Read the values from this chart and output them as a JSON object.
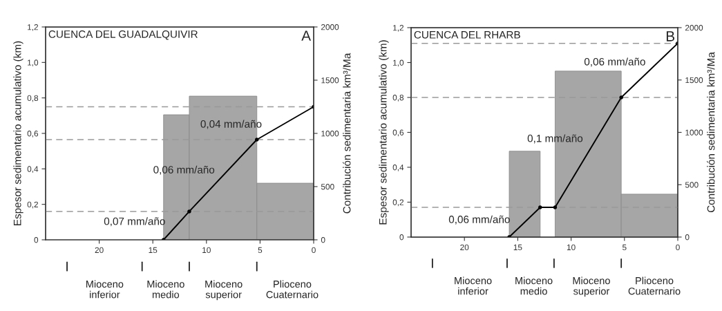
{
  "chart_data": [
    {
      "type": "line",
      "title": "CUENCA DEL GUADALQUIVIR",
      "xlabel": null,
      "ylabel": "Espesor sedimentario acumulativo (km)",
      "y2label": "Contribución sedimentaria km³/Ma",
      "xlim": [
        25,
        0
      ],
      "xticks": [
        20,
        15,
        10,
        5,
        0
      ],
      "ylim": [
        0,
        1.2
      ],
      "yticks": [
        0,
        {
          "value": 0.2,
          "label": "0,2"
        },
        {
          "value": 0.4,
          "label": "0,4"
        },
        {
          "value": 0.6,
          "label": "0,6"
        },
        {
          "value": 0.8,
          "label": "0,8"
        },
        {
          "value": 1.0,
          "label": "1,0"
        },
        {
          "value": 1.2,
          "label": "1,2"
        }
      ],
      "y2lim": [
        0,
        2000
      ],
      "y2ticks": [
        0,
        500,
        1000,
        1500,
        2000
      ],
      "series": [
        {
          "type": "histogram",
          "axis": "y2",
          "color": "#a6a6a6",
          "bins": [
            14,
            11.6,
            5.3,
            0
          ],
          "values": [
            1175,
            1350,
            532
          ]
        },
        {
          "color": "#000000",
          "x": [
            14,
            11.6,
            5.3,
            0
          ],
          "values": [
            0,
            0.16,
            0.565,
            0.75
          ]
        }
      ],
      "ref_lines": [
        {
          "axis": "y",
          "value": 0.16,
          "color": "#999999",
          "line_style": "dashed"
        },
        {
          "axis": "y",
          "value": 0.565,
          "color": "#999999",
          "line_style": "dashed"
        },
        {
          "axis": "y",
          "value": 0.75,
          "color": "#999999",
          "line_style": "dashed"
        }
      ],
      "annotations": [
        "A",
        "0,07 mm/año",
        "0,06 mm/año",
        "0,04 mm/año",
        "Mioceno\ninferior",
        "Mioceno\nmedio",
        "Mioceno\nsuperior",
        "Plioceno\nCuaternario"
      ],
      "marker": "circle",
      "line_style": "solid",
      "grid": false,
      "legend": false
    },
    {
      "type": "line",
      "title": "CUENCA DEL RHARB",
      "ylabel": "Espesor sedimentario acumulativo (km)",
      "y2label": "Contribución sedimentaria km³/Ma",
      "xlim": [
        25,
        0
      ],
      "xticks": [
        20,
        15,
        10,
        5,
        0
      ],
      "ylim": [
        0,
        1.2
      ],
      "yticks": [
        0,
        {
          "value": 0.2,
          "label": "0,2"
        },
        {
          "value": 0.4,
          "label": "0,4"
        },
        {
          "value": 0.6,
          "label": "0,6"
        },
        {
          "value": 0.8,
          "label": "0,8"
        },
        {
          "value": 1.0,
          "label": "1,0"
        },
        {
          "value": 1.2,
          "label": "1,2"
        }
      ],
      "y2lim": [
        0,
        2000
      ],
      "y2ticks": [
        0,
        500,
        1000,
        1500,
        2000
      ],
      "series": [
        {
          "type": "histogram",
          "axis": "y2",
          "color": "#a6a6a6",
          "bins": [
            15.8,
            12.9,
            11.5,
            5.3,
            0
          ],
          "values": [
            820,
            null,
            1585,
            410
          ]
        },
        {
          "color": "#000000",
          "x": [
            15.8,
            12.9,
            12.2,
            11.5,
            5.3,
            0
          ],
          "values": [
            0,
            0.17,
            null,
            0.17,
            0.8,
            1.11
          ]
        }
      ],
      "ref_lines": [
        {
          "axis": "y",
          "value": 0.17,
          "color": "#999999",
          "line_style": "dashed"
        },
        {
          "axis": "y",
          "value": 0.8,
          "color": "#999999",
          "line_style": "dashed"
        },
        {
          "axis": "y",
          "value": 1.11,
          "color": "#999999",
          "line_style": "dashed"
        }
      ],
      "annotations": [
        "B",
        "0,06 mm/año",
        "0,1 mm/año",
        "0,06 mm/año",
        "Mioceno\ninferior",
        "Mioceno\nmedio",
        "Mioceno\nsuperior",
        "Plioceno\nCuaternario"
      ],
      "marker": "circle",
      "line_style": "solid",
      "grid": false,
      "legend": false
    }
  ]
}
